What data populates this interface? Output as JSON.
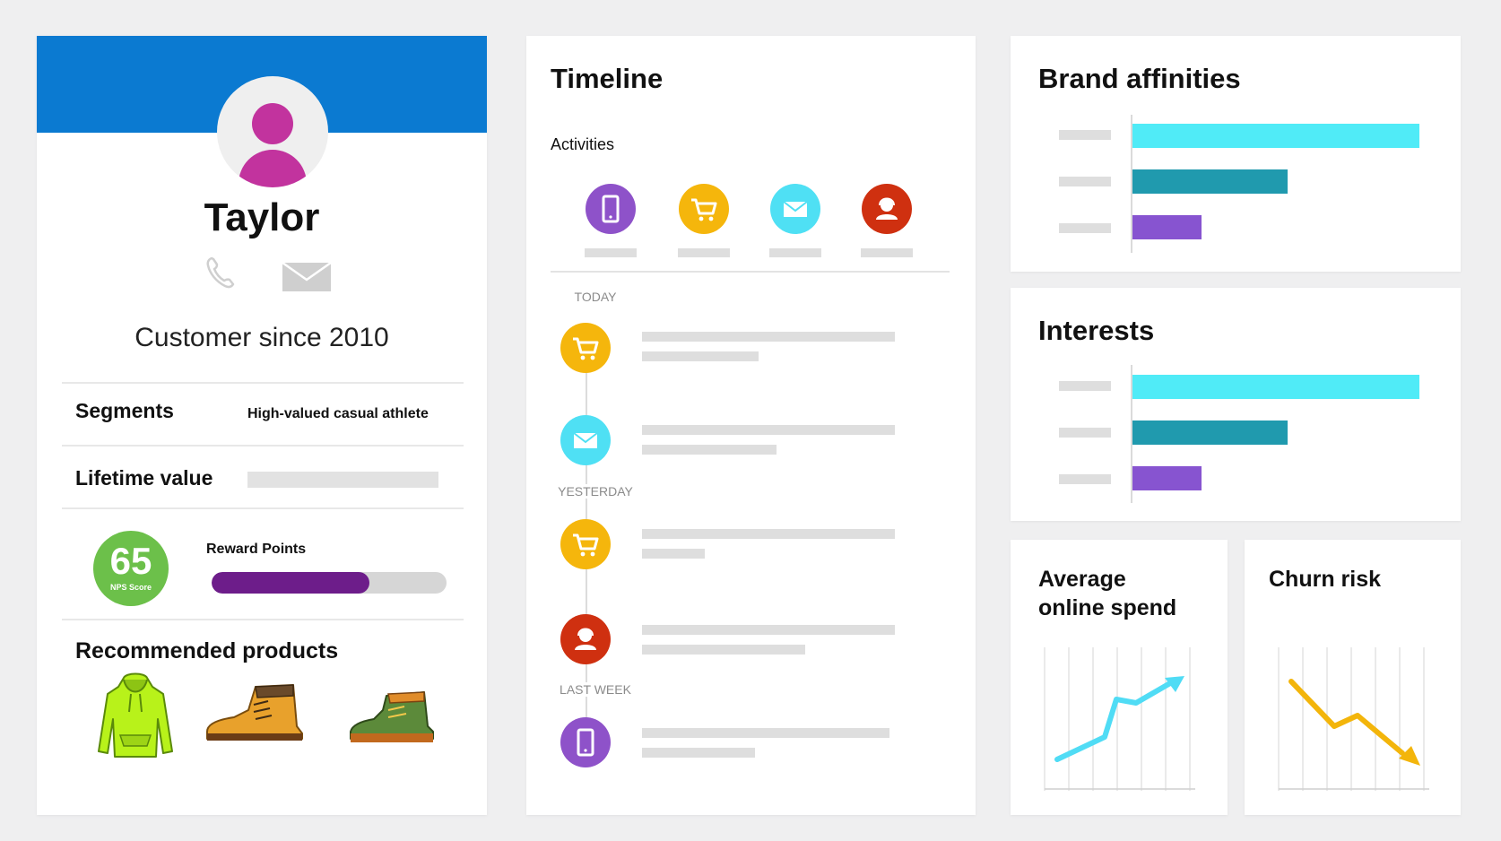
{
  "colors": {
    "banner": "#0b7ad1",
    "avatar": "#c2339e",
    "nps": "#6cc04a",
    "reward": "#6d1d8a",
    "phone": "#8e52c9",
    "cart": "#f5b60c",
    "email": "#4fe0f4",
    "agent": "#cf3010",
    "bar_cyan": "#50ebf7",
    "bar_teal": "#209aae",
    "bar_purple": "#8754d0",
    "spend_line": "#50dcf5",
    "churn_line": "#f3b50b"
  },
  "profile": {
    "name": "Taylor",
    "customer_since": "Customer since 2010",
    "icons": [
      "phone-icon",
      "mail-icon"
    ],
    "segments_label": "Segments",
    "segments_value": "High-valued casual athlete",
    "lifetime_label": "Lifetime value",
    "nps_value": "65",
    "nps_caption": "NPS Score",
    "reward_label": "Reward Points",
    "reward_fraction": 0.67,
    "recommended_title": "Recommended products",
    "products": [
      "hoodie",
      "work-boot",
      "hiking-boot"
    ]
  },
  "timeline": {
    "title": "Timeline",
    "activities_label": "Activities",
    "activity_icons": [
      "phone-icon",
      "cart-icon",
      "mail-icon",
      "agent-icon"
    ],
    "sections": {
      "today": "TODAY",
      "yesterday": "YESTERDAY",
      "last_week": "LAST WEEK"
    },
    "entries": [
      {
        "section": "today",
        "icon": "cart-icon"
      },
      {
        "section": "today",
        "icon": "mail-icon"
      },
      {
        "section": "yesterday",
        "icon": "cart-icon"
      },
      {
        "section": "yesterday",
        "icon": "agent-icon"
      },
      {
        "section": "last_week",
        "icon": "phone-icon"
      }
    ]
  },
  "brand_affinities": {
    "title": "Brand affinities",
    "values": [
      100,
      54,
      24
    ]
  },
  "interests": {
    "title": "Interests",
    "values": [
      100,
      54,
      24
    ]
  },
  "average_online_spend": {
    "title_line1": "Average",
    "title_line2": "online spend",
    "trend": "up"
  },
  "churn_risk": {
    "title": "Churn risk",
    "trend": "down"
  }
}
